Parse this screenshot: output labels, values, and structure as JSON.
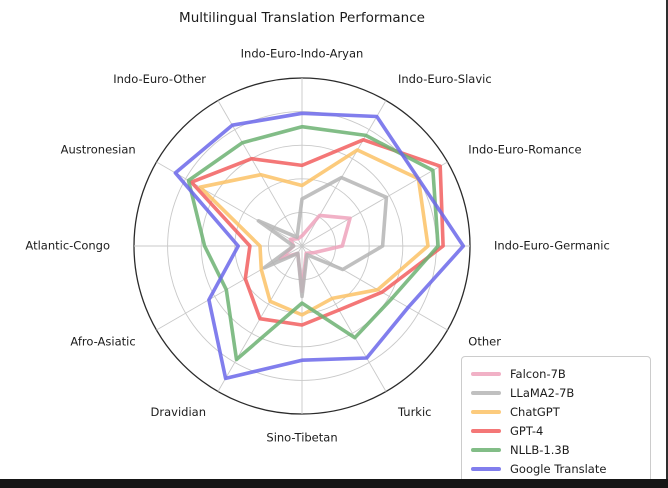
{
  "chart_data": {
    "type": "radar",
    "title": "Multilingual Translation Performance",
    "categories": [
      "Indo-Euro-Indo-Aryan",
      "Indo-Euro-Slavic",
      "Indo-Euro-Romance",
      "Indo-Euro-Germanic",
      "Other",
      "Turkic",
      "Sino-Tibetan",
      "Dravidian",
      "Afro-Asiatic",
      "Atlantic-Congo",
      "Austronesian",
      "Indo-Euro-Other"
    ],
    "series": [
      {
        "name": "Falcon-7B",
        "color": "#EFA3BC",
        "values": [
          0.06,
          0.21,
          0.33,
          0.24,
          0.08,
          0.05,
          0.27,
          0.05,
          0.15,
          0.05,
          0.08,
          0.05
        ]
      },
      {
        "name": "LLaMA2-7B",
        "color": "#B5B5B5",
        "values": [
          0.28,
          0.47,
          0.58,
          0.48,
          0.28,
          0.06,
          0.3,
          0.05,
          0.26,
          0.05,
          0.3,
          0.06
        ]
      },
      {
        "name": "ChatGPT",
        "color": "#FCC266",
        "values": [
          0.36,
          0.66,
          0.8,
          0.75,
          0.52,
          0.36,
          0.41,
          0.38,
          0.28,
          0.25,
          0.7,
          0.49
        ]
      },
      {
        "name": "GPT-4",
        "color": "#F25F5F",
        "values": [
          0.48,
          0.73,
          0.95,
          0.84,
          0.55,
          0.44,
          0.47,
          0.5,
          0.39,
          0.31,
          0.76,
          0.6
        ]
      },
      {
        "name": "NLLB-1.3B",
        "color": "#6CB172",
        "values": [
          0.71,
          0.76,
          0.9,
          0.81,
          0.62,
          0.63,
          0.34,
          0.78,
          0.52,
          0.58,
          0.78,
          0.71
        ]
      },
      {
        "name": "Google Translate",
        "color": "#6B67EA",
        "values": [
          0.79,
          0.89,
          0.8,
          0.96,
          0.73,
          0.77,
          0.68,
          0.91,
          0.64,
          0.38,
          0.87,
          0.83
        ]
      }
    ],
    "scale": {
      "min": 0,
      "max": 1,
      "gridline_rings": 5,
      "radial_tick_labels_visible": false
    },
    "grid": true,
    "legend_position": "lower-right",
    "colors": {
      "outer_ring": "#2b2b2b",
      "grid": "#c9c9c9",
      "spoke": "#c9c9c9",
      "title_text": "#1c1c1c",
      "label_text": "#1c1c1c",
      "bottom_edge": "#161616",
      "right_edge": "#2e2e2e"
    }
  }
}
